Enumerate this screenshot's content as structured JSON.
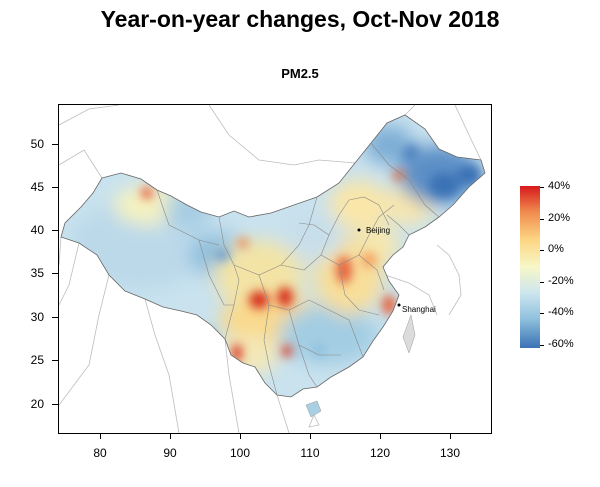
{
  "title": "Year-on-year changes, Oct-Nov 2018",
  "subtitle": "PM2.5",
  "map": {
    "x_ticks": [
      "80",
      "90",
      "100",
      "110",
      "120",
      "130"
    ],
    "y_ticks": [
      "20",
      "25",
      "30",
      "35",
      "40",
      "45",
      "50"
    ],
    "x_range": [
      73.5,
      135
    ],
    "y_range": [
      17,
      55
    ],
    "cities": [
      {
        "name": "Beijing",
        "lon": 116.4,
        "lat": 39.9
      },
      {
        "name": "Shanghai",
        "lon": 121.5,
        "lat": 31.2
      }
    ]
  },
  "legend": {
    "labels": [
      "40%",
      "20%",
      "0%",
      "-20%",
      "-40%",
      "-60%"
    ],
    "colors": [
      "#d7191c",
      "#f08b4e",
      "#fdd582",
      "#f7f7c8",
      "#cde6ef",
      "#8fc0dd",
      "#3a72b5"
    ]
  }
}
